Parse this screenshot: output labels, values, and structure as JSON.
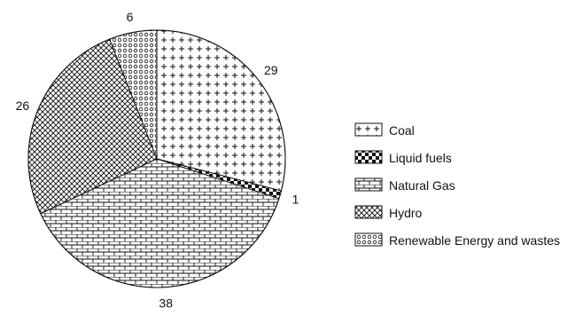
{
  "chart_data": {
    "type": "pie",
    "title": "",
    "categories": [
      "Coal",
      "Liquid fuels",
      "Natural Gas",
      "Hydro",
      "Renewable Energy and wastes"
    ],
    "values": [
      29,
      1,
      38,
      26,
      6
    ],
    "slice_labels": [
      "29",
      "1",
      "38",
      "26",
      "6"
    ],
    "legend": {
      "placement": "right",
      "entries": [
        {
          "label": "Coal",
          "pattern": "cross-plus"
        },
        {
          "label": "Liquid fuels",
          "pattern": "checker"
        },
        {
          "label": "Natural Gas",
          "pattern": "brick"
        },
        {
          "label": "Hydro",
          "pattern": "crosshatch"
        },
        {
          "label": "Renewable Energy and wastes",
          "pattern": "circles"
        }
      ]
    },
    "start_angle_deg": 0,
    "direction": "clockwise",
    "colors": {
      "stroke": "#111111",
      "background": "#ffffff"
    }
  }
}
